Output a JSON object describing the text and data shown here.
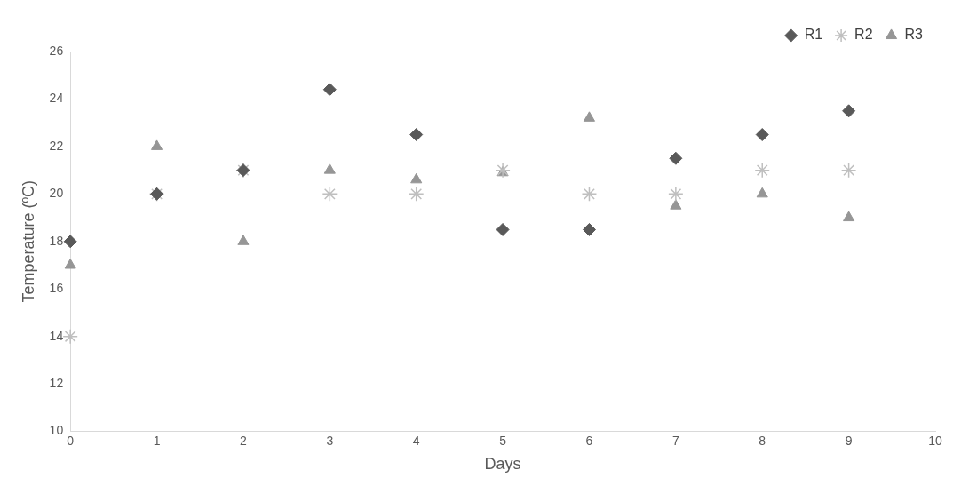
{
  "chart_data": {
    "type": "scatter",
    "xlabel": "Days",
    "ylabel": "Temperature (ºC)",
    "x": [
      0,
      1,
      2,
      3,
      4,
      5,
      6,
      7,
      8,
      9
    ],
    "series": [
      {
        "name": "R1",
        "color": "#595959",
        "marker": "diamond",
        "values": [
          18,
          20,
          21,
          24.4,
          22.5,
          18.5,
          18.5,
          21.5,
          22.5,
          23.5
        ]
      },
      {
        "name": "R2",
        "color": "#bfbfbf",
        "marker": "cross",
        "values": [
          14,
          20,
          21,
          20,
          20,
          21,
          20,
          20,
          21,
          21
        ]
      },
      {
        "name": "R3",
        "color": "#969696",
        "marker": "triangle",
        "values": [
          17,
          22,
          18,
          21,
          20.6,
          20.9,
          23.2,
          19.5,
          20,
          19
        ]
      }
    ],
    "xlim": [
      0,
      10
    ],
    "xticks": [
      0,
      1,
      2,
      3,
      4,
      5,
      6,
      7,
      8,
      9,
      10
    ],
    "ylim": [
      10,
      26
    ],
    "yticks": [
      10,
      12,
      14,
      16,
      18,
      20,
      22,
      24,
      26
    ],
    "grid": false,
    "legend": "top right"
  }
}
